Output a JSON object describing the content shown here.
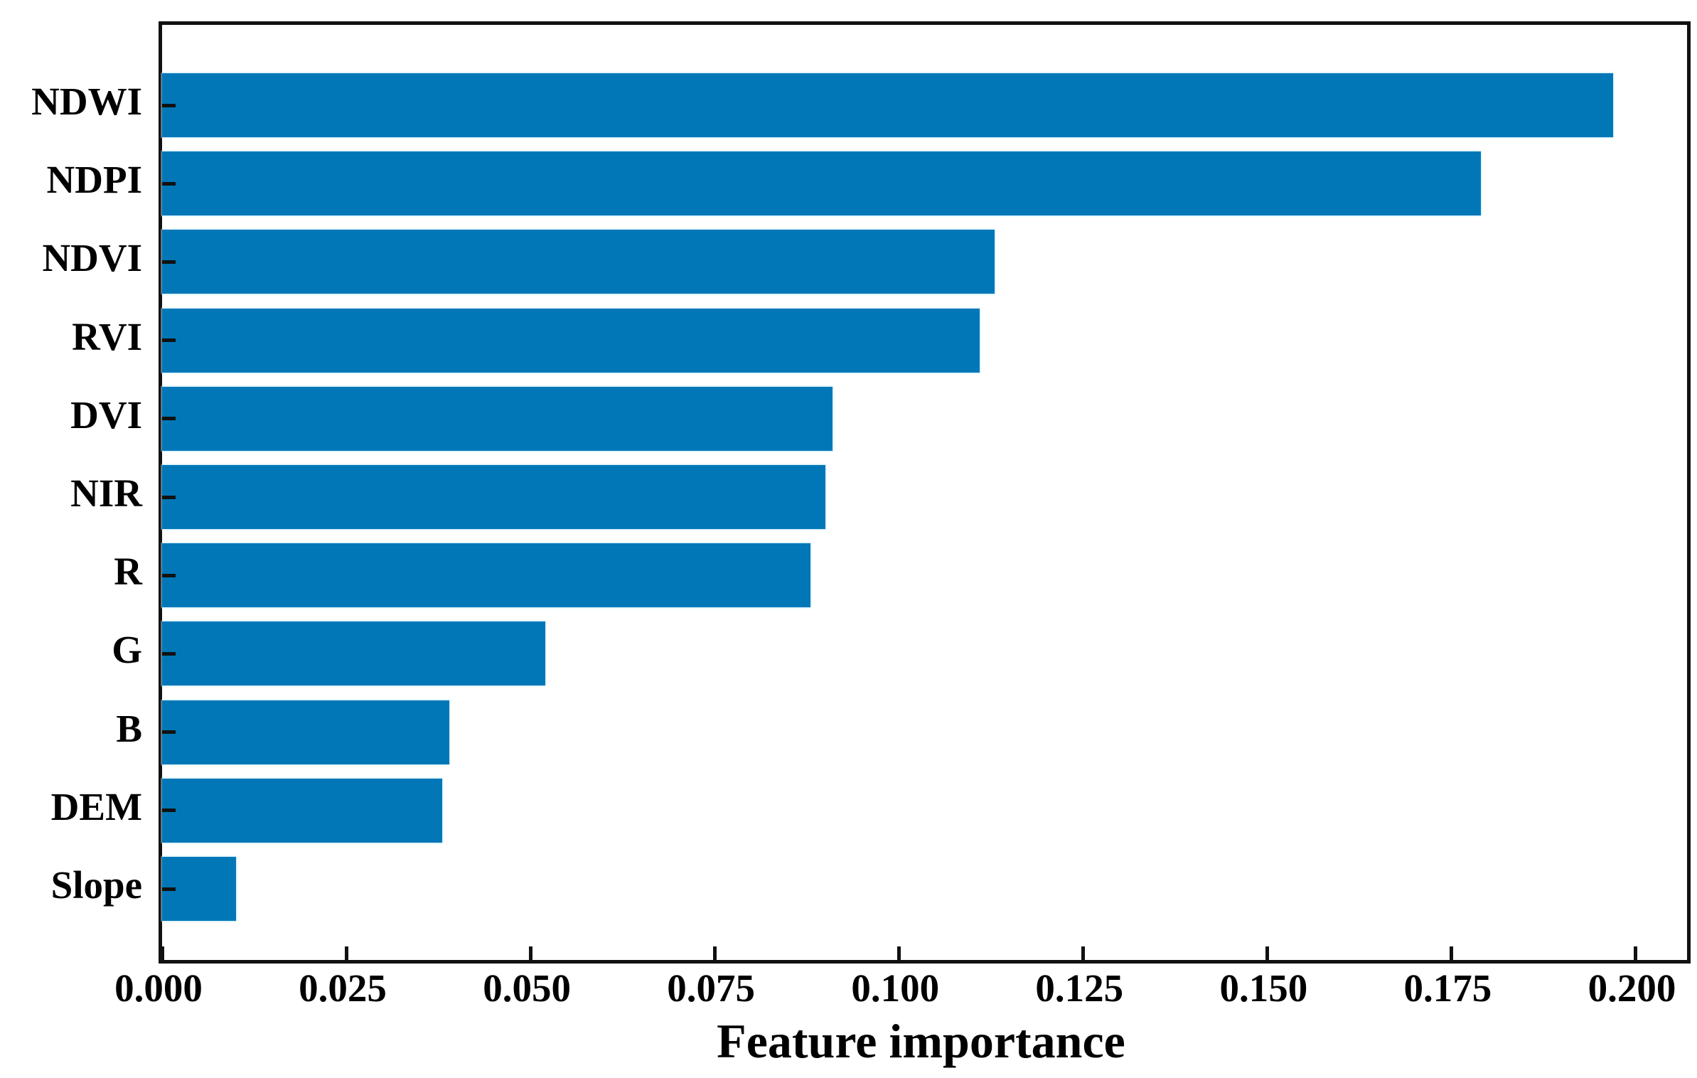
{
  "chart_data": {
    "type": "bar",
    "orientation": "horizontal",
    "title": "",
    "xlabel": "Feature importance",
    "ylabel": "",
    "categories": [
      "NDWI",
      "NDPI",
      "NDVI",
      "RVI",
      "DVI",
      "NIR",
      "R",
      "G",
      "B",
      "DEM",
      "Slope"
    ],
    "values": [
      0.197,
      0.179,
      0.113,
      0.111,
      0.091,
      0.09,
      0.088,
      0.052,
      0.039,
      0.038,
      0.01
    ],
    "x_ticks": [
      0.0,
      0.025,
      0.05,
      0.075,
      0.1,
      0.125,
      0.15,
      0.175,
      0.2
    ],
    "x_tick_labels": [
      "0.000",
      "0.025",
      "0.050",
      "0.075",
      "0.100",
      "0.125",
      "0.150",
      "0.175",
      "0.200"
    ],
    "xlim": [
      0,
      0.207
    ],
    "grid": false,
    "legend": "none",
    "frame": "full-box",
    "tick_direction": "in",
    "bar_color": "#0277b8",
    "axis_color": "#111111",
    "text_color": "#000000",
    "background_color": "#ffffff"
  }
}
